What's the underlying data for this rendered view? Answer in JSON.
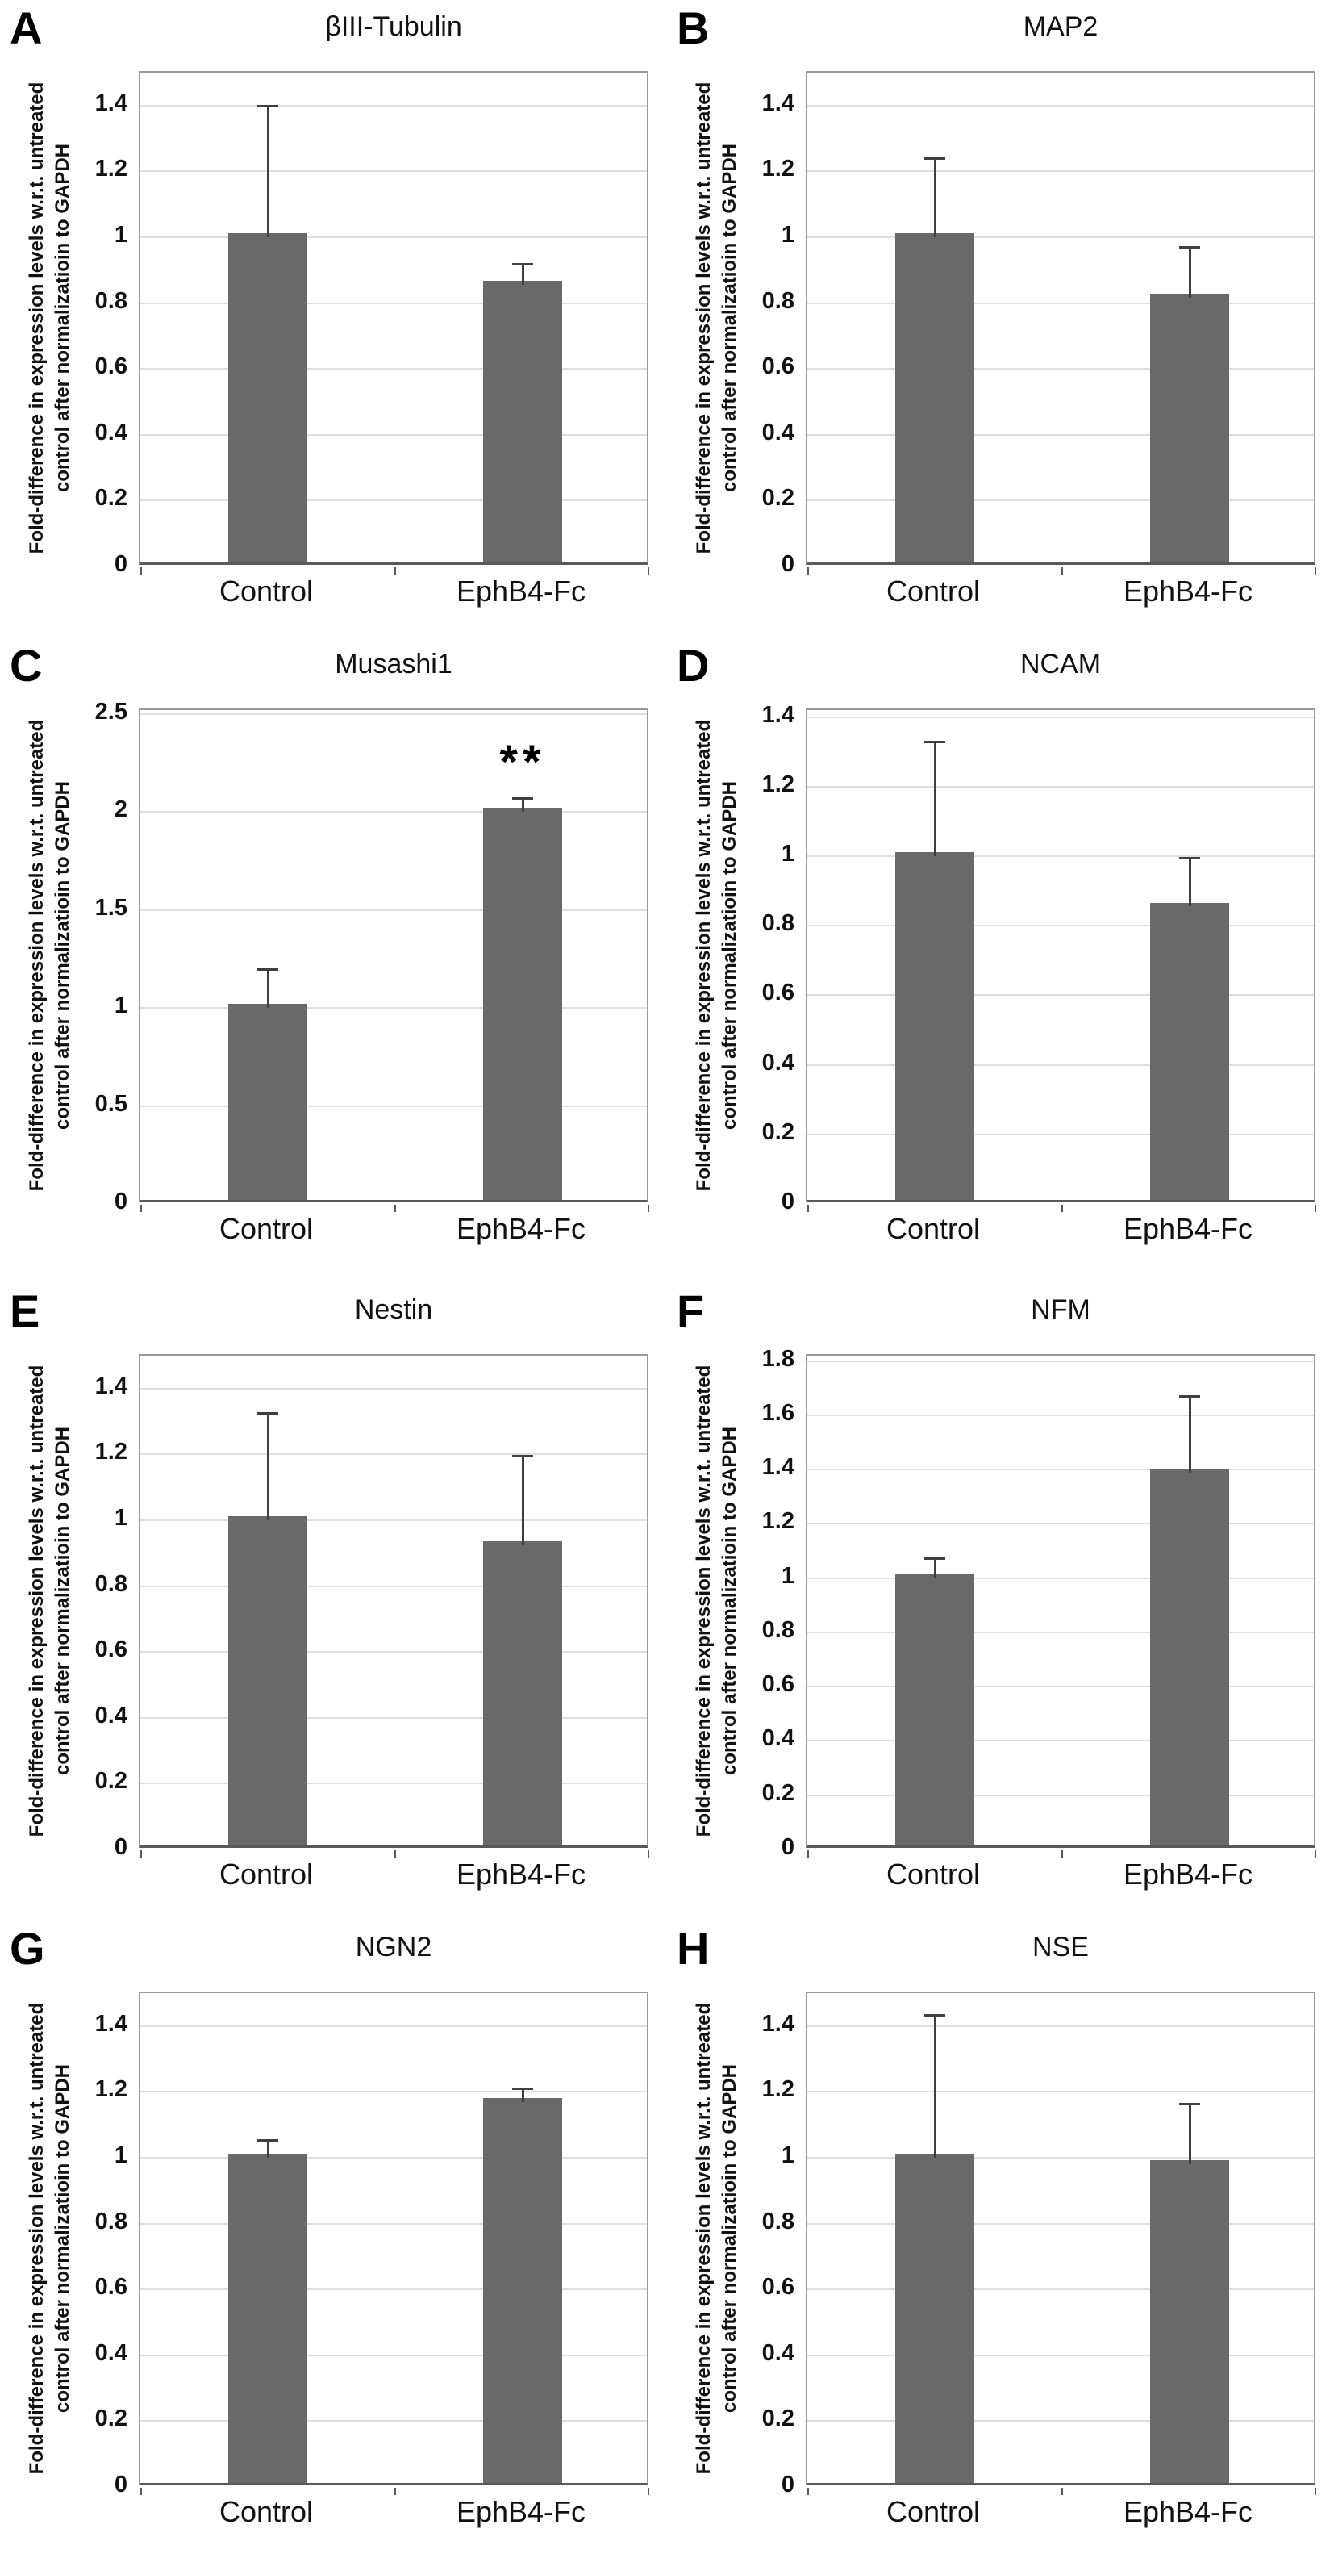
{
  "figure": {
    "y_axis_label": "Fold-difference in expression levels w.r.t. untreated control after normalizatioin to GAPDH",
    "y_axis_label_lines": [
      "Fold-difference in expression levels w.r.t. untreated",
      "control after normalizatioin to GAPDH"
    ],
    "x_categories": [
      "Control",
      "EphB4-Fc"
    ],
    "colors": {
      "bar": "#696969",
      "error_bar": "#3f3f3f",
      "gridline": "#dedede",
      "plot_border": "#999999",
      "axis_line": "#595959",
      "text": "#111111"
    }
  },
  "chart_data": [
    {
      "type": "bar",
      "panel_letter": "A",
      "title": "βIII-Tubulin",
      "categories": [
        "Control",
        "EphB4-Fc"
      ],
      "values": [
        1.0,
        0.855
      ],
      "errors_plus": [
        0.4,
        0.065
      ],
      "ylabel": "Fold-difference in expression levels w.r.t. untreated control after normalizatioin to GAPDH",
      "yticks": [
        "0",
        "0.2",
        "0.4",
        "0.6",
        "0.8",
        "1",
        "1.2",
        "1.4"
      ],
      "ylim": [
        0,
        1.5
      ],
      "grid": true,
      "significance": null
    },
    {
      "type": "bar",
      "panel_letter": "B",
      "title": "MAP2",
      "categories": [
        "Control",
        "EphB4-Fc"
      ],
      "values": [
        1.0,
        0.815
      ],
      "errors_plus": [
        0.24,
        0.155
      ],
      "ylabel": "Fold-difference in expression levels w.r.t. untreated control after normalizatioin to GAPDH",
      "yticks": [
        "0",
        "0.2",
        "0.4",
        "0.6",
        "0.8",
        "1",
        "1.2",
        "1.4"
      ],
      "ylim": [
        0,
        1.5
      ],
      "grid": true,
      "significance": null
    },
    {
      "type": "bar",
      "panel_letter": "C",
      "title": "Musashi1",
      "categories": [
        "Control",
        "EphB4-Fc"
      ],
      "values": [
        1.0,
        2.0
      ],
      "errors_plus": [
        0.2,
        0.07
      ],
      "ylabel": "Fold-difference in expression levels w.r.t. untreated control after normalizatioin to GAPDH",
      "yticks": [
        "0",
        "0.5",
        "1",
        "1.5",
        "2",
        "2.5"
      ],
      "ylim": [
        0,
        2.52
      ],
      "grid": true,
      "significance": {
        "label": "**",
        "category_index": 1
      }
    },
    {
      "type": "bar",
      "panel_letter": "D",
      "title": "NCAM",
      "categories": [
        "Control",
        "EphB4-Fc"
      ],
      "values": [
        1.0,
        0.855
      ],
      "errors_plus": [
        0.33,
        0.14
      ],
      "ylabel": "Fold-difference in expression levels w.r.t. untreated control after normalizatioin to GAPDH",
      "yticks": [
        "0",
        "0.2",
        "0.4",
        "0.6",
        "0.8",
        "1",
        "1.2",
        "1.4"
      ],
      "ylim": [
        0,
        1.42
      ],
      "grid": true,
      "significance": null
    },
    {
      "type": "bar",
      "panel_letter": "E",
      "title": "Nestin",
      "categories": [
        "Control",
        "EphB4-Fc"
      ],
      "values": [
        1.0,
        0.925
      ],
      "errors_plus": [
        0.325,
        0.27
      ],
      "ylabel": "Fold-difference in expression levels w.r.t. untreated control after normalizatioin to GAPDH",
      "yticks": [
        "0",
        "0.2",
        "0.4",
        "0.6",
        "0.8",
        "1",
        "1.2",
        "1.4"
      ],
      "ylim": [
        0,
        1.5
      ],
      "grid": true,
      "significance": null
    },
    {
      "type": "bar",
      "panel_letter": "F",
      "title": "NFM",
      "categories": [
        "Control",
        "EphB4-Fc"
      ],
      "values": [
        1.0,
        1.385
      ],
      "errors_plus": [
        0.075,
        0.285
      ],
      "ylabel": "Fold-difference in expression levels w.r.t. untreated control after normalizatioin to GAPDH",
      "yticks": [
        "0",
        "0.2",
        "0.4",
        "0.6",
        "0.8",
        "1",
        "1.2",
        "1.4",
        "1.6",
        "1.8"
      ],
      "ylim": [
        0,
        1.82
      ],
      "grid": true,
      "significance": null
    },
    {
      "type": "bar",
      "panel_letter": "G",
      "title": "NGN2",
      "categories": [
        "Control",
        "EphB4-Fc"
      ],
      "values": [
        1.0,
        1.17
      ],
      "errors_plus": [
        0.055,
        0.04
      ],
      "ylabel": "Fold-difference in expression levels w.r.t. untreated control after normalizatioin to GAPDH",
      "yticks": [
        "0",
        "0.2",
        "0.4",
        "0.6",
        "0.8",
        "1",
        "1.2",
        "1.4"
      ],
      "ylim": [
        0,
        1.5
      ],
      "grid": true,
      "significance": null
    },
    {
      "type": "bar",
      "panel_letter": "H",
      "title": "NSE",
      "categories": [
        "Control",
        "EphB4-Fc"
      ],
      "values": [
        1.0,
        0.98
      ],
      "errors_plus": [
        0.435,
        0.185
      ],
      "ylabel": "Fold-difference in expression levels w.r.t. untreated control after normalizatioin to GAPDH",
      "yticks": [
        "0",
        "0.2",
        "0.4",
        "0.6",
        "0.8",
        "1",
        "1.2",
        "1.4"
      ],
      "ylim": [
        0,
        1.5
      ],
      "grid": true,
      "significance": null
    }
  ]
}
